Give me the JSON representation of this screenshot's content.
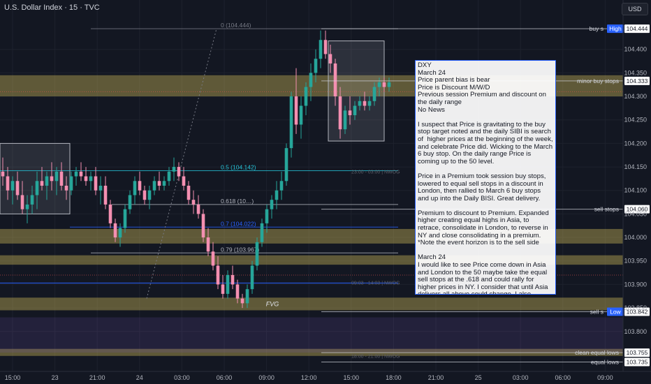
{
  "header": {
    "symbol_line": "U.S. Dollar Index · 15 · TVC"
  },
  "currency_button": "USD",
  "colors": {
    "up": "#26a69a",
    "down": "#f48fb1",
    "background": "#131722",
    "zone": "#c9b458",
    "fib_line": "#787b86",
    "blue_line": "#2962ff",
    "cyan_line": "#26c6da"
  },
  "chart_data": {
    "type": "candlestick",
    "price_axis": {
      "range": [
        103.715,
        104.505
      ],
      "ticks": [
        "104.400",
        "104.350",
        "104.300",
        "104.250",
        "104.200",
        "104.150",
        "104.100",
        "104.050",
        "104.000",
        "103.950",
        "103.900",
        "103.850",
        "103.800"
      ]
    },
    "time_axis": {
      "ticks": [
        "15:00",
        "23",
        "21:00",
        "24",
        "03:00",
        "06:00",
        "09:00",
        "12:00",
        "15:00",
        "18:00",
        "21:00",
        "25",
        "03:00",
        "06:00",
        "09:00"
      ]
    },
    "price_labels": [
      {
        "text": "buy s",
        "tag": "High",
        "value": "104.444",
        "price": 104.444
      },
      {
        "text": "minor buy stops",
        "tag": "",
        "value": "104.333",
        "price": 104.333
      },
      {
        "text": "sell stops",
        "tag": "",
        "value": "104.060",
        "price": 104.06
      },
      {
        "text": "sell s",
        "tag": "Low",
        "value": "103.842",
        "price": 103.842
      },
      {
        "text": "clean equal lows",
        "tag": "",
        "value": "103.755",
        "price": 103.755
      },
      {
        "text": "equal lows",
        "tag": "",
        "value": "103.735",
        "price": 103.735
      }
    ],
    "fib_levels": [
      {
        "label": "0 (104.444)",
        "price": 104.444
      },
      {
        "label": "0.5 (104.142)",
        "price": 104.142
      },
      {
        "label": "0.618 (10…)",
        "price": 104.07
      },
      {
        "label": "0.7 (104.022)",
        "price": 104.022
      },
      {
        "label": "0.79 (103.967)",
        "price": 103.967
      }
    ],
    "zones": [
      {
        "label": "",
        "from": 104.3,
        "to": 104.345
      },
      {
        "label": "",
        "from": 103.987,
        "to": 104.018
      },
      {
        "label": "",
        "from": 103.942,
        "to": 103.962
      },
      {
        "label": "FVG",
        "from": 103.845,
        "to": 103.872
      },
      {
        "label": "",
        "from": 103.748,
        "to": 103.763
      }
    ],
    "session_labels": [
      "23:00 - 03:00 | NWOG",
      "09:03 - 14:03 | NWOG",
      "18:00 - 21:00 | NWOG"
    ],
    "candles": [
      [
        104.14,
        104.17,
        104.11,
        104.13
      ],
      [
        104.13,
        104.15,
        104.08,
        104.1
      ],
      [
        104.1,
        104.13,
        104.07,
        104.12
      ],
      [
        104.12,
        104.14,
        104.08,
        104.09
      ],
      [
        104.09,
        104.12,
        104.05,
        104.06
      ],
      [
        104.06,
        104.09,
        104.03,
        104.07
      ],
      [
        104.07,
        104.11,
        104.05,
        104.09
      ],
      [
        104.09,
        104.14,
        104.06,
        104.12
      ],
      [
        104.12,
        104.15,
        104.1,
        104.11
      ],
      [
        104.11,
        104.14,
        104.08,
        104.13
      ],
      [
        104.13,
        104.16,
        104.1,
        104.12
      ],
      [
        104.12,
        104.15,
        104.09,
        104.14
      ],
      [
        104.14,
        104.16,
        104.1,
        104.11
      ],
      [
        104.11,
        104.13,
        104.08,
        104.1
      ],
      [
        104.1,
        104.14,
        104.09,
        104.13
      ],
      [
        104.13,
        104.15,
        104.11,
        104.14
      ],
      [
        104.14,
        104.16,
        104.12,
        104.13
      ],
      [
        104.13,
        104.15,
        104.11,
        104.12
      ],
      [
        104.12,
        104.14,
        104.1,
        104.13
      ],
      [
        104.13,
        104.15,
        104.09,
        104.1
      ],
      [
        104.1,
        104.13,
        104.07,
        104.11
      ],
      [
        104.11,
        104.13,
        104.06,
        104.07
      ],
      [
        104.07,
        104.08,
        104.02,
        104.03
      ],
      [
        104.03,
        104.04,
        103.99,
        104.0
      ],
      [
        104.0,
        104.03,
        103.98,
        104.02
      ],
      [
        104.02,
        104.07,
        104.01,
        104.06
      ],
      [
        104.06,
        104.1,
        104.05,
        104.09
      ],
      [
        104.09,
        104.13,
        104.07,
        104.12
      ],
      [
        104.12,
        104.14,
        104.09,
        104.1
      ],
      [
        104.1,
        104.11,
        104.07,
        104.08
      ],
      [
        104.08,
        104.11,
        104.06,
        104.1
      ],
      [
        104.1,
        104.13,
        104.09,
        104.12
      ],
      [
        104.12,
        104.14,
        104.1,
        104.11
      ],
      [
        104.11,
        104.13,
        104.1,
        104.12
      ],
      [
        104.12,
        104.15,
        104.11,
        104.14
      ],
      [
        104.14,
        104.17,
        104.12,
        104.15
      ],
      [
        104.15,
        104.16,
        104.12,
        104.13
      ],
      [
        104.13,
        104.15,
        104.1,
        104.11
      ],
      [
        104.11,
        104.12,
        104.07,
        104.08
      ],
      [
        104.08,
        104.1,
        104.05,
        104.07
      ],
      [
        104.07,
        104.09,
        104.04,
        104.05
      ],
      [
        104.05,
        104.06,
        103.99,
        104.0
      ],
      [
        104.0,
        104.02,
        103.96,
        103.97
      ],
      [
        103.97,
        103.99,
        103.93,
        103.94
      ],
      [
        103.94,
        103.96,
        103.89,
        103.9
      ],
      [
        103.9,
        103.92,
        103.87,
        103.88
      ],
      [
        103.88,
        103.93,
        103.87,
        103.92
      ],
      [
        103.92,
        103.94,
        103.89,
        103.9
      ],
      [
        103.9,
        103.91,
        103.86,
        103.87
      ],
      [
        103.87,
        103.88,
        103.85,
        103.86
      ],
      [
        103.86,
        103.9,
        103.85,
        103.89
      ],
      [
        103.89,
        103.95,
        103.88,
        103.94
      ],
      [
        103.94,
        104.0,
        103.93,
        103.99
      ],
      [
        103.99,
        104.04,
        103.98,
        104.03
      ],
      [
        104.03,
        104.07,
        104.01,
        104.06
      ],
      [
        104.06,
        104.09,
        104.04,
        104.08
      ],
      [
        104.08,
        104.12,
        104.06,
        104.1
      ],
      [
        104.1,
        104.14,
        104.08,
        104.12
      ],
      [
        104.12,
        104.2,
        104.11,
        104.19
      ],
      [
        104.19,
        104.31,
        104.17,
        104.3
      ],
      [
        104.3,
        104.36,
        104.22,
        104.24
      ],
      [
        104.24,
        104.3,
        104.21,
        104.28
      ],
      [
        104.28,
        104.33,
        104.26,
        104.32
      ],
      [
        104.32,
        104.37,
        104.29,
        104.35
      ],
      [
        104.35,
        104.4,
        104.33,
        104.38
      ],
      [
        104.38,
        104.44,
        104.36,
        104.42
      ],
      [
        104.42,
        104.44,
        104.38,
        104.39
      ],
      [
        104.39,
        104.41,
        104.35,
        104.37
      ],
      [
        104.37,
        104.38,
        104.28,
        104.3
      ],
      [
        104.3,
        104.32,
        104.21,
        104.23
      ],
      [
        104.23,
        104.28,
        104.22,
        104.27
      ],
      [
        104.27,
        104.3,
        104.24,
        104.26
      ],
      [
        104.26,
        104.29,
        104.25,
        104.28
      ],
      [
        104.28,
        104.3,
        104.27,
        104.29
      ],
      [
        104.29,
        104.31,
        104.27,
        104.28
      ],
      [
        104.28,
        104.3,
        104.27,
        104.29
      ],
      [
        104.29,
        104.33,
        104.28,
        104.32
      ],
      [
        104.32,
        104.34,
        104.3,
        104.33
      ],
      [
        104.33,
        104.34,
        104.31,
        104.32
      ],
      [
        104.32,
        104.34,
        104.31,
        104.33
      ]
    ]
  },
  "note": {
    "lines": [
      "DXY",
      "March 24",
      "Price parent bias is bear",
      "Price is Discount M/W/D",
      "Previous session Premium and discount on the daily range",
      "No News",
      "",
      "I suspect that Price is gravitating to the buy stop target noted and the daily SIBI is search of  higher prices at the beginning of the week, and celebrate Price did. Wicking to the March 6 buy stop. On the daily range Price is coming up to the 50 level.",
      "",
      "Price in a Premium took session buy stops, lowered to equal sell stops in a discount in London, then rallied to March 6 buy stops and up into the Daily BISI. Great delivery.",
      "",
      "Premium to discount to Premium. Expanded higher creating equal highs in Asia, to retrace, consolidate in London, to reverse in NY and close consolidating in a premium.",
      "*Note the event horizon is to the sell side",
      "",
      "March 24",
      "I would like to see Price come down in Asia and London to the 50 maybe take the equal sell stops at the .618 and could rally for higher prices in NY. I consider that until Asia delivers all above could change. I also consider that no news today or tomorrow could create high resistance days, stay sharp."
    ]
  }
}
